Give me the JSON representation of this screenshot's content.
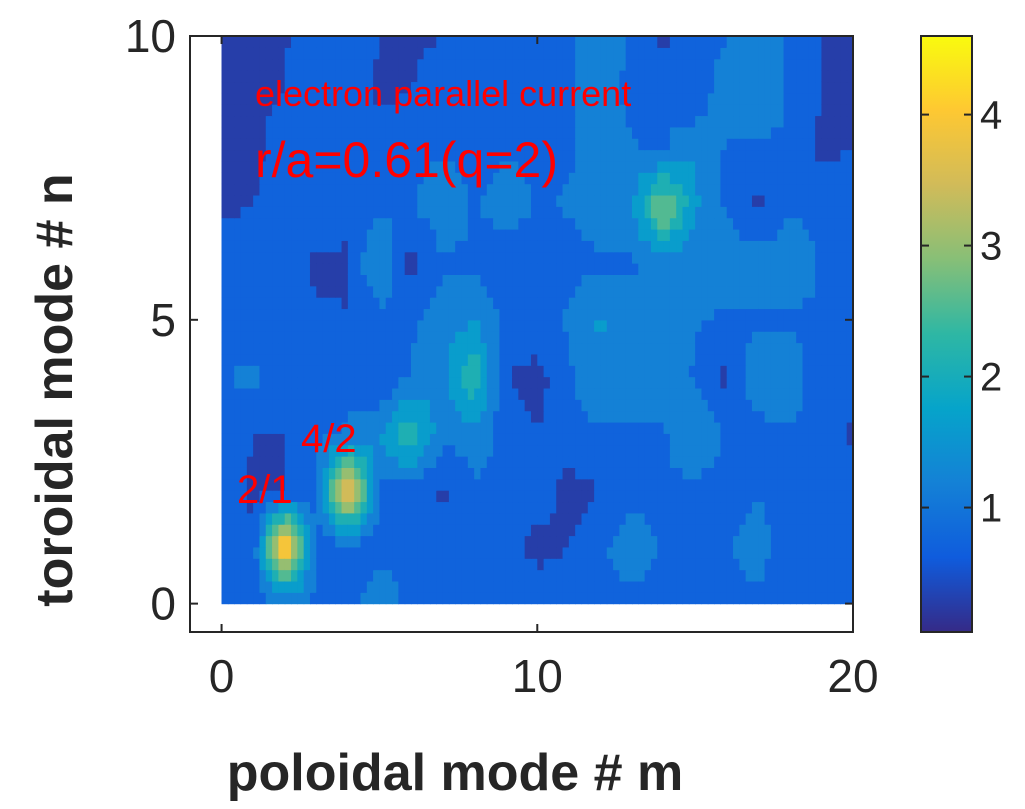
{
  "chart_data": {
    "type": "heatmap",
    "xlabel": "poloidal mode # m",
    "ylabel": "toroidal mode # n",
    "xlim": [
      -1,
      20
    ],
    "ylim": [
      -0.5,
      10
    ],
    "xticks": [
      0,
      10,
      20
    ],
    "yticks": [
      0,
      5,
      10
    ],
    "grid": false,
    "colormap": "parula",
    "colorbar": {
      "range": [
        0.05,
        4.6
      ],
      "ticks": [
        1,
        2,
        3,
        4
      ],
      "position": "right"
    },
    "annotations": [
      {
        "text": "electron parallel current",
        "x": 1.1,
        "y": 8.85,
        "size": "medium"
      },
      {
        "text": "r/a=0.61(q=2)",
        "x": 1.1,
        "y": 7.55,
        "size": "large"
      },
      {
        "text": "4/2",
        "x": 2.5,
        "y": 2.85,
        "size": "medium"
      },
      {
        "text": "2/1",
        "x": 0.5,
        "y": 1.95,
        "size": "medium"
      }
    ],
    "m": [
      0,
      1,
      2,
      3,
      4,
      5,
      6,
      7,
      8,
      9,
      10,
      11,
      12,
      13,
      14,
      15,
      16,
      17,
      18,
      19,
      20
    ],
    "n": [
      0,
      1,
      2,
      3,
      4,
      5,
      6,
      7,
      8,
      9,
      10
    ],
    "z": [
      [
        0.9,
        0.8,
        0.9,
        0.9,
        0.8,
        1.3,
        0.8,
        0.8,
        0.9,
        0.9,
        0.9,
        0.8,
        0.9,
        0.8,
        0.9,
        0.9,
        0.9,
        0.8,
        0.9,
        0.9,
        0.9
      ],
      [
        0.9,
        0.6,
        4.5,
        0.8,
        0.7,
        0.8,
        0.9,
        0.8,
        0.9,
        0.8,
        0.3,
        0.5,
        0.9,
        1.2,
        0.9,
        0.5,
        0.9,
        1.2,
        0.5,
        0.9,
        0.9
      ],
      [
        0.9,
        0.4,
        0.5,
        0.8,
        4.2,
        0.9,
        0.8,
        0.4,
        0.9,
        0.9,
        0.8,
        0.3,
        0.5,
        0.8,
        0.9,
        0.8,
        0.7,
        0.9,
        0.9,
        0.5,
        0.8
      ],
      [
        0.9,
        0.5,
        0.5,
        0.9,
        1.0,
        1.4,
        2.3,
        1.1,
        1.2,
        0.8,
        0.5,
        0.9,
        0.9,
        0.9,
        0.9,
        1.5,
        0.9,
        0.8,
        0.9,
        0.9,
        0.4
      ],
      [
        0.9,
        1.1,
        0.7,
        0.5,
        0.9,
        0.5,
        1.0,
        1.3,
        2.3,
        0.5,
        0.3,
        0.9,
        1.2,
        1.2,
        1.4,
        0.9,
        0.4,
        1.3,
        1.3,
        0.5,
        0.9
      ],
      [
        0.9,
        0.5,
        0.5,
        0.6,
        0.5,
        0.8,
        0.9,
        1.2,
        1.4,
        0.9,
        0.9,
        1.0,
        1.5,
        1.2,
        1.4,
        1.0,
        0.9,
        0.9,
        0.9,
        0.9,
        0.5
      ],
      [
        0.9,
        0.9,
        0.9,
        0.4,
        0.5,
        1.5,
        0.3,
        0.9,
        0.9,
        0.5,
        0.9,
        0.8,
        0.9,
        0.9,
        1.2,
        1.0,
        1.3,
        1.2,
        1.3,
        0.9,
        0.5
      ],
      [
        0.4,
        0.5,
        0.9,
        0.9,
        0.5,
        0.9,
        0.9,
        1.3,
        0.9,
        1.2,
        0.9,
        1.0,
        1.2,
        1.4,
        3.0,
        1.5,
        0.9,
        0.4,
        0.9,
        0.9,
        0.9
      ],
      [
        0.5,
        0.3,
        0.9,
        0.9,
        0.5,
        0.8,
        0.9,
        0.9,
        0.8,
        0.9,
        0.9,
        0.9,
        1.2,
        1.0,
        0.9,
        1.4,
        0.9,
        0.9,
        0.9,
        0.4,
        0.5
      ],
      [
        0.5,
        0.4,
        0.5,
        0.8,
        0.9,
        0.4,
        0.5,
        0.9,
        0.8,
        0.9,
        0.5,
        0.9,
        1.2,
        0.8,
        0.9,
        0.5,
        1.4,
        1.3,
        0.9,
        0.5,
        0.4
      ],
      [
        0.5,
        0.4,
        0.5,
        0.5,
        0.9,
        0.5,
        0.4,
        0.5,
        0.5,
        0.5,
        0.9,
        0.8,
        1.4,
        0.9,
        0.4,
        0.8,
        0.9,
        1.2,
        0.9,
        0.5,
        0.4
      ]
    ]
  }
}
